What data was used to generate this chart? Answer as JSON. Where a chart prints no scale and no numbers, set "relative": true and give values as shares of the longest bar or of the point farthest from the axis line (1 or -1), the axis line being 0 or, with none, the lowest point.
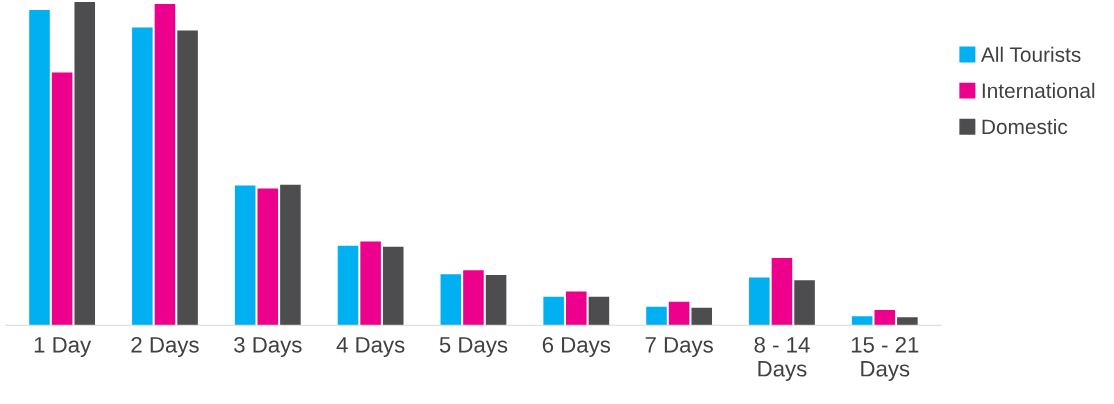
{
  "chart_data": {
    "type": "bar",
    "relative": true,
    "legend": "right",
    "grid": false,
    "categories": [
      "1 Day",
      "2 Days",
      "3 Days",
      "4 Days",
      "5 Days",
      "6 Days",
      "7 Days",
      "8 - 14\nDays",
      "15 - 21\nDays"
    ],
    "series": [
      {
        "name": "All Tourists",
        "color": "#00b0f0",
        "values": [
          0.975,
          0.921,
          0.432,
          0.246,
          0.158,
          0.088,
          0.057,
          0.148,
          0.028
        ]
      },
      {
        "name": "International",
        "color": "#ec008c",
        "values": [
          0.782,
          0.994,
          0.423,
          0.259,
          0.17,
          0.104,
          0.073,
          0.208,
          0.047
        ]
      },
      {
        "name": "Domestic",
        "color": "#4d4d4f",
        "values": [
          1,
          0.912,
          0.435,
          0.243,
          0.155,
          0.088,
          0.054,
          0.139,
          0.025
        ]
      }
    ]
  }
}
